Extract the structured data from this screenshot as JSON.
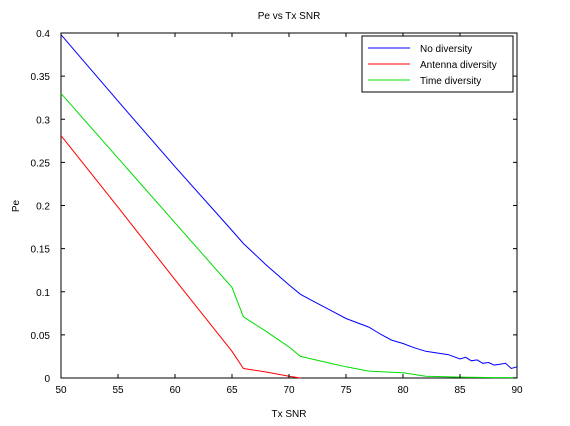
{
  "chart_data": {
    "type": "line",
    "title": "Pe vs Tx SNR",
    "xlabel": "Tx SNR",
    "ylabel": "Pe",
    "xlim": [
      50,
      90
    ],
    "ylim": [
      0,
      0.4
    ],
    "xticks": [
      50,
      55,
      60,
      65,
      70,
      75,
      80,
      85,
      90
    ],
    "yticks": [
      0,
      0.05,
      0.1,
      0.15,
      0.2,
      0.25,
      0.3,
      0.35,
      0.4
    ],
    "grid": false,
    "legend_position": "top-right",
    "series": [
      {
        "name": "No diversity",
        "color": "#0000ff",
        "x": [
          50,
          55,
          60,
          65,
          66,
          68,
          70,
          71,
          72,
          74,
          75,
          77,
          78,
          79,
          80,
          81,
          82,
          83,
          84,
          85,
          85.5,
          86,
          86.5,
          87,
          87.5,
          88,
          88.5,
          89,
          89.5,
          90
        ],
        "y": [
          0.398,
          0.321,
          0.245,
          0.171,
          0.156,
          0.131,
          0.108,
          0.097,
          0.09,
          0.076,
          0.069,
          0.059,
          0.051,
          0.044,
          0.04,
          0.035,
          0.031,
          0.029,
          0.027,
          0.022,
          0.024,
          0.02,
          0.021,
          0.017,
          0.018,
          0.015,
          0.016,
          0.017,
          0.011,
          0.013
        ]
      },
      {
        "name": "Antenna diversity",
        "color": "#ff0000",
        "x": [
          50,
          55,
          60,
          65,
          66,
          68,
          70,
          71
        ],
        "y": [
          0.281,
          0.198,
          0.114,
          0.031,
          0.011,
          0.007,
          0.002,
          0.0
        ]
      },
      {
        "name": "Time diversity",
        "color": "#00dd00",
        "x": [
          50,
          55,
          60,
          65,
          66,
          68,
          70,
          71,
          72,
          74,
          75,
          77,
          80,
          82,
          85,
          88,
          90
        ],
        "y": [
          0.33,
          0.255,
          0.18,
          0.105,
          0.071,
          0.054,
          0.036,
          0.025,
          0.022,
          0.016,
          0.013,
          0.008,
          0.006,
          0.002,
          0.001,
          0.0005,
          0.0003
        ]
      }
    ]
  }
}
